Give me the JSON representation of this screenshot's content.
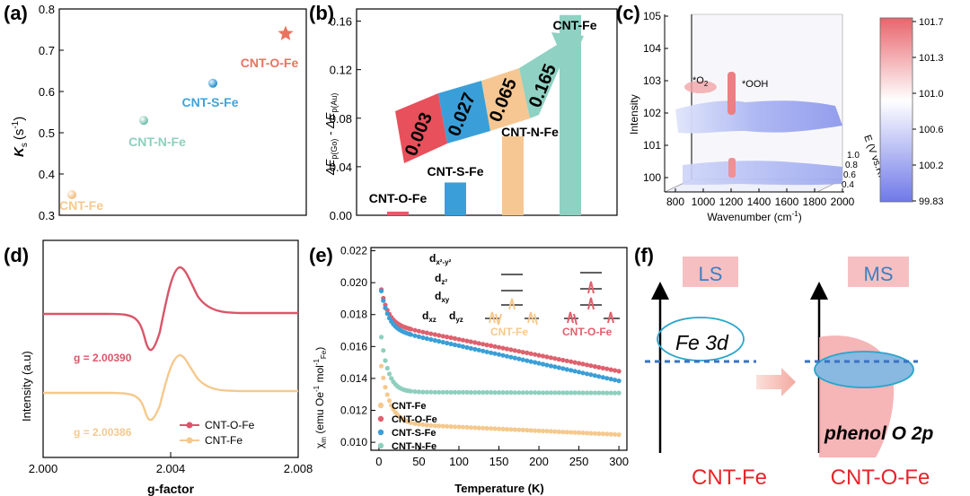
{
  "chart_data": [
    {
      "panel": "(a)",
      "type": "scatter",
      "ylabel": "K",
      "ylabel_sub": "s",
      "ylabel_unit": "(s",
      "ylabel_sup": "-1",
      "ylabel_close": ")",
      "ylim": [
        0.3,
        0.8
      ],
      "yticks": [
        "0.3",
        "0.4",
        "0.5",
        "0.6",
        "0.7",
        "0.8"
      ],
      "points": [
        {
          "label": "CNT-Fe",
          "y": 0.35,
          "color": "#f5c98d",
          "marker": "sphere"
        },
        {
          "label": "CNT-N-Fe",
          "y": 0.53,
          "color": "#8ecfbe",
          "marker": "sphere"
        },
        {
          "label": "CNT-S-Fe",
          "y": 0.62,
          "color": "#3fa3dc",
          "marker": "sphere"
        },
        {
          "label": "CNT-O-Fe",
          "y": 0.74,
          "color": "#e8735f",
          "marker": "star"
        }
      ]
    },
    {
      "panel": "(b)",
      "type": "bar",
      "ylabel": "ΔE",
      "ylabel_sub1": "p(Go)",
      "ylabel_mid": " - ΔE",
      "ylabel_sub2": "p(Au)",
      "ylim": [
        0,
        0.17
      ],
      "yticks": [
        "0.00",
        "0.04",
        "0.08",
        "0.12",
        "0.16"
      ],
      "categories": [
        "CNT-O-Fe",
        "CNT-S-Fe",
        "CNT-N-Fe",
        "CNT-Fe"
      ],
      "values": [
        0.003,
        0.027,
        0.065,
        0.165
      ],
      "colors": [
        "#e85a6a",
        "#3a9fd8",
        "#f6c792",
        "#8fd1c2"
      ],
      "arrow_labels": [
        "0.003",
        "0.027",
        "0.065",
        "0.165"
      ]
    },
    {
      "panel": "(c)",
      "type": "heatmap",
      "xlabel": "Wavenumber (cm",
      "xlabel_sup": "-1",
      "xlabel_close": ")",
      "ylabel": "Intensity",
      "zlabel": "E (V vs.RHE)",
      "xticks": [
        "800",
        "1000",
        "1200",
        "1400",
        "1600",
        "1800",
        "2000"
      ],
      "yticks": [
        "100",
        "101",
        "102",
        "103",
        "104",
        "105"
      ],
      "zticks": [
        "1.0",
        "0.8",
        "0.6",
        "0.4"
      ],
      "annotations": [
        "*O",
        "2",
        "*OOH"
      ],
      "colorbar": [
        "101.7",
        "101.3",
        "101.0",
        "100.6",
        "100.2",
        "99.83"
      ]
    },
    {
      "panel": "(d)",
      "type": "line",
      "xlabel": "g-factor",
      "ylabel": "Intensity (a.u)",
      "xlim": [
        2.0,
        2.008
      ],
      "xticks": [
        "2.000",
        "2.004",
        "2.008"
      ],
      "series": [
        {
          "name": "CNT-O-Fe",
          "g_label": "g = 2.00390",
          "color": "#d9566a"
        },
        {
          "name": "CNT-Fe",
          "g_label": "g = 2.00386",
          "color": "#f5c98d"
        }
      ]
    },
    {
      "panel": "(e)",
      "type": "scatter",
      "xlabel": "Temperature (K)",
      "ylabel": "χ",
      "ylabel_sub": "m",
      "ylabel_unit": " (emu Oe",
      "ylabel_sup": "-1",
      "ylabel_mol": " mol",
      "ylabel_sup2": "-1",
      "ylabel_fe": "Fe",
      "ylabel_close": ")",
      "xlim": [
        -10,
        310
      ],
      "ylim": [
        0.0095,
        0.0222
      ],
      "xticks": [
        "0",
        "50",
        "100",
        "150",
        "200",
        "250",
        "300"
      ],
      "yticks": [
        "0.010",
        "0.012",
        "0.014",
        "0.016",
        "0.018",
        "0.020",
        "0.022"
      ],
      "orbitals": [
        "d",
        "d",
        "d",
        "d",
        "d"
      ],
      "orbital_subs": [
        "x²-y²",
        "z²",
        "xy",
        "xz",
        "yz"
      ],
      "inset_labels": [
        "CNT-Fe",
        "CNT-O-Fe"
      ],
      "series": [
        {
          "name": "CNT-Fe",
          "color": "#f5c98d",
          "a": 0.0112,
          "b": -2.4e-06,
          "c": 0.0047,
          "d": 11
        },
        {
          "name": "CNT-O-Fe",
          "color": "#e0606e",
          "a": 0.01745,
          "b": -1e-05,
          "c": 0.003,
          "d": 9
        },
        {
          "name": "CNT-S-Fe",
          "color": "#3a9fd8",
          "a": 0.01715,
          "b": -1.1e-05,
          "c": 0.0033,
          "d": 9
        },
        {
          "name": "CNT-N-Fe",
          "color": "#8ecfbe",
          "a": 0.01315,
          "b": -2e-07,
          "c": 0.0048,
          "d": 9
        }
      ]
    },
    {
      "panel": "(f)",
      "type": "other",
      "labels": [
        "LS",
        "MS",
        "Fe 3d",
        "phenol O 2p",
        "CNT-Fe",
        "CNT-O-Fe"
      ]
    }
  ]
}
